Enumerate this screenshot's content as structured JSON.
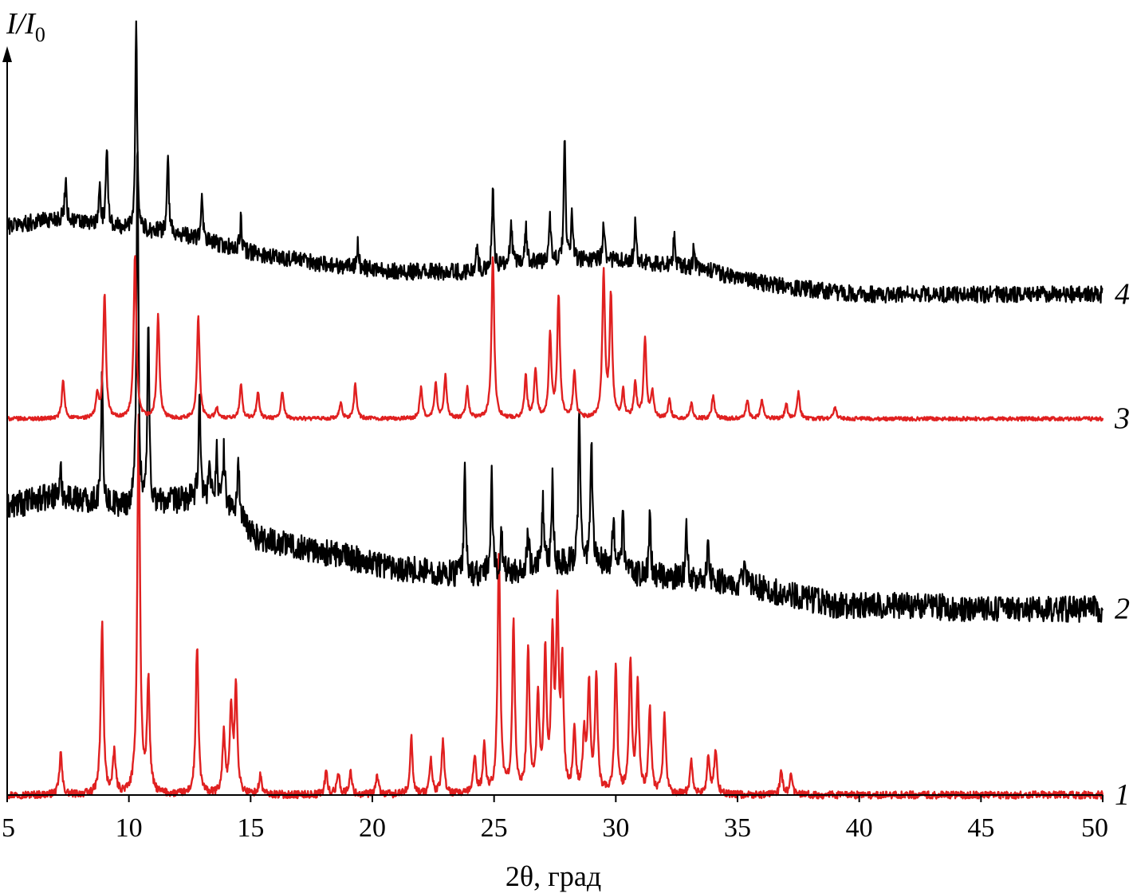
{
  "chart_data": {
    "type": "line",
    "xlabel": "2θ, град",
    "ylabel": "I/I0",
    "ylabel_parts": {
      "main": "I/I",
      "sub": "0"
    },
    "xlim": [
      5,
      50
    ],
    "xticks": [
      "5",
      "10",
      "15",
      "20",
      "25",
      "30",
      "35",
      "40",
      "45",
      "50"
    ],
    "grid": false,
    "legend": "none",
    "colors": {
      "experimental": "#000000",
      "calculated": "#e02020"
    },
    "series": [
      {
        "label": "1",
        "kind": "calculated",
        "color": "#e02020",
        "baseline": [
          [
            5,
            0
          ],
          [
            50,
            0
          ]
        ],
        "peaks": [
          [
            7.2,
            0.11
          ],
          [
            8.9,
            0.45
          ],
          [
            9.4,
            0.11
          ],
          [
            10.4,
            1.0
          ],
          [
            10.8,
            0.29
          ],
          [
            12.8,
            0.39
          ],
          [
            13.9,
            0.16
          ],
          [
            14.2,
            0.22
          ],
          [
            14.4,
            0.28
          ],
          [
            15.4,
            0.05
          ],
          [
            18.1,
            0.06
          ],
          [
            18.6,
            0.06
          ],
          [
            19.1,
            0.06
          ],
          [
            20.2,
            0.05
          ],
          [
            21.6,
            0.15
          ],
          [
            22.4,
            0.09
          ],
          [
            22.9,
            0.14
          ],
          [
            24.2,
            0.1
          ],
          [
            24.6,
            0.13
          ],
          [
            25.2,
            0.64
          ],
          [
            25.8,
            0.44
          ],
          [
            26.4,
            0.38
          ],
          [
            26.8,
            0.25
          ],
          [
            27.1,
            0.36
          ],
          [
            27.4,
            0.39
          ],
          [
            27.6,
            0.46
          ],
          [
            27.8,
            0.32
          ],
          [
            28.3,
            0.16
          ],
          [
            28.7,
            0.15
          ],
          [
            28.9,
            0.28
          ],
          [
            29.2,
            0.3
          ],
          [
            30.0,
            0.34
          ],
          [
            30.6,
            0.35
          ],
          [
            30.9,
            0.29
          ],
          [
            31.4,
            0.22
          ],
          [
            32.0,
            0.21
          ],
          [
            33.1,
            0.09
          ],
          [
            33.8,
            0.1
          ],
          [
            34.1,
            0.12
          ],
          [
            36.8,
            0.06
          ],
          [
            37.2,
            0.05
          ]
        ],
        "noise": 0.01
      },
      {
        "label": "2",
        "kind": "experimental",
        "color": "#000000",
        "baseline": [
          [
            5,
            0.76
          ],
          [
            7.0,
            0.79
          ],
          [
            10.0,
            0.76
          ],
          [
            12.5,
            0.78
          ],
          [
            14.0,
            0.77
          ],
          [
            15.2,
            0.68
          ],
          [
            18.0,
            0.64
          ],
          [
            21.0,
            0.6
          ],
          [
            23.5,
            0.58
          ],
          [
            24.5,
            0.58
          ],
          [
            27.0,
            0.6
          ],
          [
            29.0,
            0.62
          ],
          [
            31.0,
            0.58
          ],
          [
            33.0,
            0.57
          ],
          [
            35.0,
            0.56
          ],
          [
            37.0,
            0.53
          ],
          [
            39.0,
            0.5
          ],
          [
            42.0,
            0.5
          ],
          [
            45.0,
            0.49
          ],
          [
            50.0,
            0.49
          ]
        ],
        "peaks": [
          [
            7.2,
            0.06
          ],
          [
            8.9,
            0.34
          ],
          [
            10.35,
            0.98
          ],
          [
            10.8,
            0.48
          ],
          [
            12.9,
            0.3
          ],
          [
            13.3,
            0.11
          ],
          [
            13.6,
            0.14
          ],
          [
            13.9,
            0.13
          ],
          [
            14.5,
            0.16
          ],
          [
            23.8,
            0.27
          ],
          [
            24.9,
            0.27
          ],
          [
            25.3,
            0.11
          ],
          [
            26.4,
            0.11
          ],
          [
            27.0,
            0.17
          ],
          [
            27.4,
            0.22
          ],
          [
            28.5,
            0.41
          ],
          [
            29.0,
            0.32
          ],
          [
            29.9,
            0.13
          ],
          [
            30.3,
            0.16
          ],
          [
            31.4,
            0.15
          ],
          [
            32.9,
            0.14
          ],
          [
            33.8,
            0.1
          ],
          [
            35.3,
            0.05
          ]
        ],
        "noise": 0.035
      },
      {
        "label": "3",
        "kind": "calculated",
        "color": "#e02020",
        "baseline": [
          [
            5,
            0.992
          ],
          [
            50,
            0.992
          ]
        ],
        "peaks": [
          [
            7.3,
            0.1
          ],
          [
            8.7,
            0.06
          ],
          [
            9.0,
            0.33
          ],
          [
            10.25,
            0.43
          ],
          [
            11.2,
            0.27
          ],
          [
            12.85,
            0.27
          ],
          [
            13.6,
            0.03
          ],
          [
            14.6,
            0.09
          ],
          [
            15.3,
            0.07
          ],
          [
            16.3,
            0.07
          ],
          [
            18.7,
            0.04
          ],
          [
            19.3,
            0.09
          ],
          [
            22.0,
            0.08
          ],
          [
            22.6,
            0.09
          ],
          [
            23.0,
            0.11
          ],
          [
            23.9,
            0.08
          ],
          [
            24.95,
            0.43
          ],
          [
            26.3,
            0.11
          ],
          [
            26.7,
            0.13
          ],
          [
            27.3,
            0.22
          ],
          [
            27.65,
            0.32
          ],
          [
            28.3,
            0.12
          ],
          [
            29.5,
            0.38
          ],
          [
            29.8,
            0.32
          ],
          [
            30.3,
            0.07
          ],
          [
            30.8,
            0.09
          ],
          [
            31.2,
            0.21
          ],
          [
            31.5,
            0.07
          ],
          [
            32.2,
            0.05
          ],
          [
            33.1,
            0.04
          ],
          [
            34.0,
            0.06
          ],
          [
            35.4,
            0.05
          ],
          [
            36.0,
            0.05
          ],
          [
            37.0,
            0.04
          ],
          [
            37.5,
            0.07
          ],
          [
            39.0,
            0.03
          ]
        ],
        "noise": 0.005
      },
      {
        "label": "4",
        "kind": "experimental",
        "color": "#000000",
        "baseline": [
          [
            5,
            1.5
          ],
          [
            7.0,
            1.52
          ],
          [
            9.0,
            1.5
          ],
          [
            12.0,
            1.48
          ],
          [
            15.0,
            1.43
          ],
          [
            18.0,
            1.4
          ],
          [
            21.0,
            1.38
          ],
          [
            24.0,
            1.38
          ],
          [
            26.0,
            1.4
          ],
          [
            28.0,
            1.41
          ],
          [
            30.0,
            1.41
          ],
          [
            32.0,
            1.4
          ],
          [
            34.0,
            1.38
          ],
          [
            35.0,
            1.36
          ],
          [
            37.0,
            1.34
          ],
          [
            40.0,
            1.32
          ],
          [
            45.0,
            1.32
          ],
          [
            50.0,
            1.32
          ]
        ],
        "peaks": [
          [
            7.4,
            0.11
          ],
          [
            8.8,
            0.1
          ],
          [
            9.1,
            0.22
          ],
          [
            10.3,
            0.55
          ],
          [
            11.6,
            0.2
          ],
          [
            13.0,
            0.11
          ],
          [
            14.6,
            0.08
          ],
          [
            19.4,
            0.06
          ],
          [
            24.3,
            0.06
          ],
          [
            24.95,
            0.21
          ],
          [
            25.7,
            0.12
          ],
          [
            26.3,
            0.1
          ],
          [
            27.3,
            0.11
          ],
          [
            27.9,
            0.31
          ],
          [
            28.2,
            0.11
          ],
          [
            29.5,
            0.1
          ],
          [
            30.8,
            0.1
          ],
          [
            32.4,
            0.08
          ],
          [
            33.2,
            0.05
          ]
        ],
        "noise": 0.022
      }
    ]
  }
}
